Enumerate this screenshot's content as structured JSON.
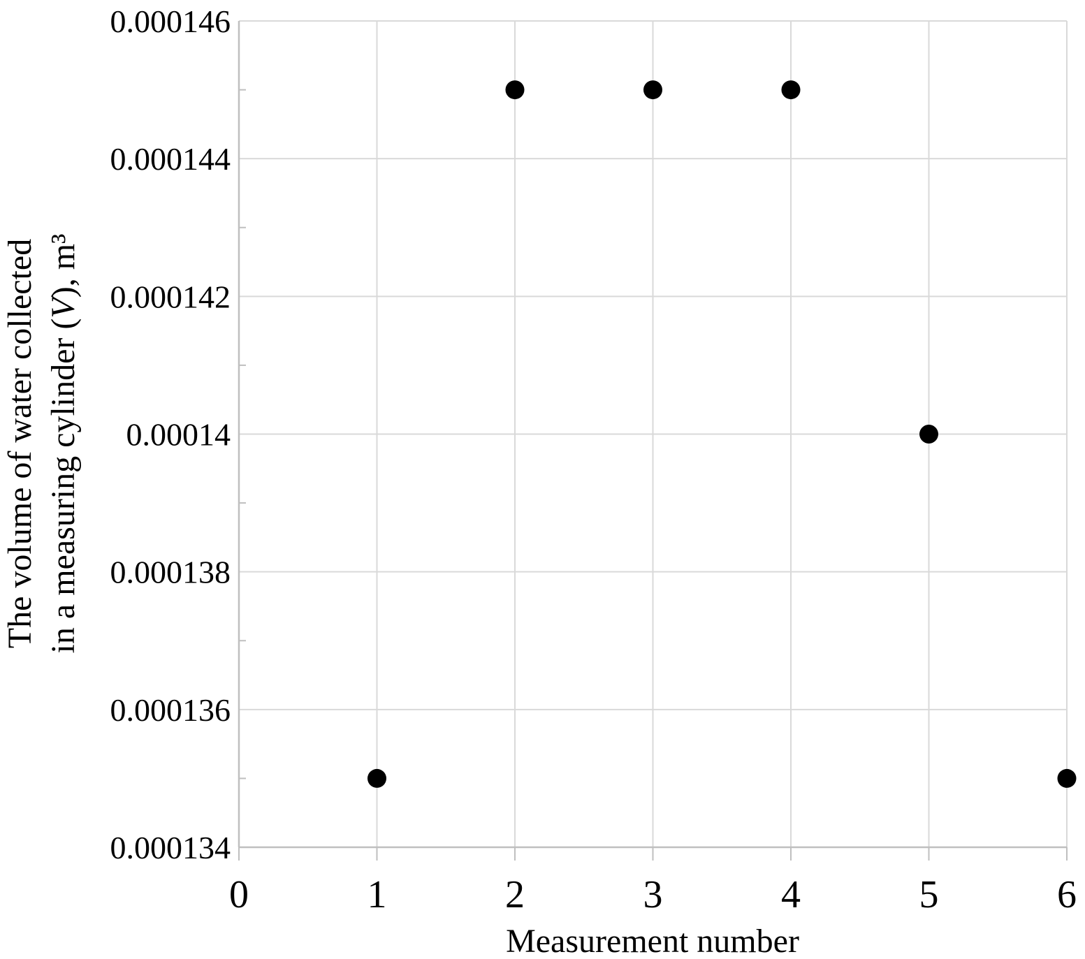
{
  "colors": {
    "background": "#ffffff",
    "gridline": "#d9d9d9",
    "axis": "#bfbfbf",
    "tick": "#bfbfbf",
    "text": "#000000",
    "marker": "#000000"
  },
  "chart_data": {
    "type": "scatter",
    "title": "",
    "xlabel": "Measurement number",
    "ylabel": "The volume of water collected in a measuring cylinder (V), m³",
    "ylabel_lines": [
      "The volume of water collected",
      "in a measuring cylinder (V), m³"
    ],
    "x": [
      1,
      2,
      3,
      4,
      5,
      6
    ],
    "y": [
      0.000135,
      0.000145,
      0.000145,
      0.000145,
      0.00014,
      0.000135
    ],
    "xlim": [
      0,
      6
    ],
    "ylim": [
      0.000134,
      0.000146
    ],
    "x_ticks": [
      {
        "value": 0,
        "label": "0"
      },
      {
        "value": 1,
        "label": "1"
      },
      {
        "value": 2,
        "label": "2"
      },
      {
        "value": 3,
        "label": "3"
      },
      {
        "value": 4,
        "label": "4"
      },
      {
        "value": 5,
        "label": "5"
      },
      {
        "value": 6,
        "label": "6"
      }
    ],
    "y_ticks": [
      {
        "value": 0.000134,
        "label": "0.000134"
      },
      {
        "value": 0.000136,
        "label": "0.000136"
      },
      {
        "value": 0.000138,
        "label": "0.000138"
      },
      {
        "value": 0.00014,
        "label": "0.00014"
      },
      {
        "value": 0.000142,
        "label": "0.000142"
      },
      {
        "value": 0.000144,
        "label": "0.000144"
      },
      {
        "value": 0.000146,
        "label": "0.000146"
      }
    ],
    "y_minor_ticks": [
      0.000135,
      0.000137,
      0.000139,
      0.000141,
      0.000143,
      0.000145
    ],
    "grid": true,
    "legend": "none",
    "marker": {
      "shape": "circle",
      "color": "#000000"
    }
  }
}
